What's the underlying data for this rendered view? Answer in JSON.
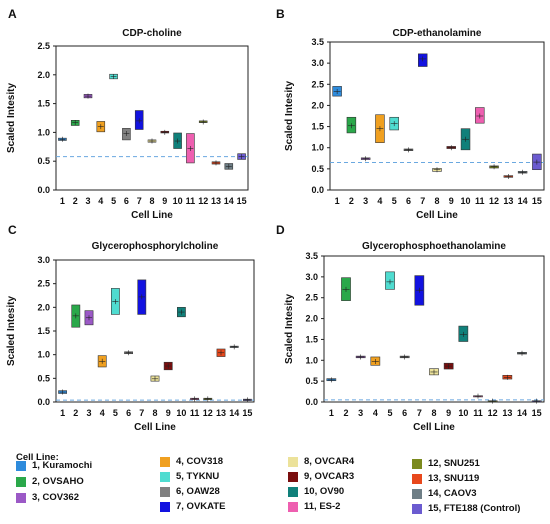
{
  "legend": {
    "title": "Cell Line:",
    "items": [
      {
        "label": "1, Kuramochi",
        "color": "#2e8bdc"
      },
      {
        "label": "2, OVSAHO",
        "color": "#2aa84a"
      },
      {
        "label": "3, COV362",
        "color": "#9b59c6"
      },
      {
        "label": "4, COV318",
        "color": "#f0a020"
      },
      {
        "label": "5, TYKNU",
        "color": "#4fdcd0"
      },
      {
        "label": "6, OAW28",
        "color": "#808080"
      },
      {
        "label": "7, OVKATE",
        "color": "#1212e0"
      },
      {
        "label": "8,   OVCAR4",
        "color": "#ece29a"
      },
      {
        "label": "9,   OVCAR3",
        "color": "#7a0e0e"
      },
      {
        "label": "10, OV90",
        "color": "#10807a"
      },
      {
        "label": "11, ES-2",
        "color": "#ee5fb0"
      },
      {
        "label": "12, SNU251",
        "color": "#7b8a1e"
      },
      {
        "label": "13, SNU119",
        "color": "#e8481c"
      },
      {
        "label": "14, CAOV3",
        "color": "#6e7e86"
      },
      {
        "label": "15, FTE188 (Control)",
        "color": "#6b5bd0"
      }
    ]
  },
  "chart_data": [
    {
      "type": "box",
      "panel": "A",
      "title": "CDP-choline",
      "xlabel": "Cell Line",
      "ylabel": "Scaled Intesity",
      "categories": [
        "1",
        "2",
        "3",
        "4",
        "5",
        "6",
        "7",
        "8",
        "9",
        "10",
        "11",
        "12",
        "13",
        "14",
        "15"
      ],
      "ylim": [
        0,
        2.5
      ],
      "yticks": [
        "0.0",
        "0.5",
        "1.0",
        "1.5",
        "2.0",
        "2.5"
      ],
      "reference_line": 0.58,
      "boxes": [
        {
          "low": 0.86,
          "high": 0.9,
          "mid": 0.88
        },
        {
          "low": 1.12,
          "high": 1.21,
          "mid": 1.17
        },
        {
          "low": 1.6,
          "high": 1.66,
          "mid": 1.63
        },
        {
          "low": 1.01,
          "high": 1.19,
          "mid": 1.1
        },
        {
          "low": 1.93,
          "high": 2.01,
          "mid": 1.97
        },
        {
          "low": 0.87,
          "high": 1.07,
          "mid": 0.98
        },
        {
          "low": 1.05,
          "high": 1.38,
          "mid": 1.2
        },
        {
          "low": 0.83,
          "high": 0.87,
          "mid": 0.85
        },
        {
          "low": 0.99,
          "high": 1.02,
          "mid": 1.0
        },
        {
          "low": 0.72,
          "high": 0.99,
          "mid": 0.85
        },
        {
          "low": 0.47,
          "high": 0.98,
          "mid": 0.72
        },
        {
          "low": 1.17,
          "high": 1.2,
          "mid": 1.18
        },
        {
          "low": 0.45,
          "high": 0.49,
          "mid": 0.47
        },
        {
          "low": 0.36,
          "high": 0.46,
          "mid": 0.41
        },
        {
          "low": 0.53,
          "high": 0.63,
          "mid": 0.58
        }
      ]
    },
    {
      "type": "box",
      "panel": "B",
      "title": "CDP-ethanolamine",
      "xlabel": "Cell Line",
      "ylabel": "Scaled Intesity",
      "categories": [
        "1",
        "2",
        "3",
        "4",
        "5",
        "6",
        "7",
        "8",
        "9",
        "10",
        "11",
        "12",
        "13",
        "14",
        "15"
      ],
      "ylim": [
        0,
        3.5
      ],
      "yticks": [
        "0.0",
        "0.5",
        "1.0",
        "1.5",
        "2.0",
        "2.5",
        "3.0",
        "3.5"
      ],
      "reference_line": 0.65,
      "boxes": [
        {
          "low": 2.22,
          "high": 2.45,
          "mid": 2.33
        },
        {
          "low": 1.35,
          "high": 1.72,
          "mid": 1.52
        },
        {
          "low": 0.72,
          "high": 0.76,
          "mid": 0.74
        },
        {
          "low": 1.12,
          "high": 1.78,
          "mid": 1.45
        },
        {
          "low": 1.42,
          "high": 1.72,
          "mid": 1.57
        },
        {
          "low": 0.93,
          "high": 0.97,
          "mid": 0.95
        },
        {
          "low": 2.92,
          "high": 3.22,
          "mid": 3.1
        },
        {
          "low": 0.44,
          "high": 0.51,
          "mid": 0.48
        },
        {
          "low": 0.98,
          "high": 1.03,
          "mid": 1.0
        },
        {
          "low": 0.95,
          "high": 1.45,
          "mid": 1.2
        },
        {
          "low": 1.58,
          "high": 1.95,
          "mid": 1.75
        },
        {
          "low": 0.52,
          "high": 0.57,
          "mid": 0.55
        },
        {
          "low": 0.3,
          "high": 0.34,
          "mid": 0.32
        },
        {
          "low": 0.4,
          "high": 0.44,
          "mid": 0.42
        },
        {
          "low": 0.48,
          "high": 0.85,
          "mid": 0.66
        }
      ]
    },
    {
      "type": "box",
      "panel": "C",
      "title": "Glycerophosphorylcholine",
      "xlabel": "Cell Line",
      "ylabel": "Scaled Intesity",
      "categories": [
        "1",
        "2",
        "3",
        "4",
        "5",
        "6",
        "7",
        "8",
        "9",
        "10",
        "11",
        "12",
        "13",
        "14",
        "15"
      ],
      "ylim": [
        0,
        3.0
      ],
      "yticks": [
        "0.0",
        "0.5",
        "1.0",
        "1.5",
        "2.0",
        "2.5",
        "3.0"
      ],
      "reference_line": 0.04,
      "boxes": [
        {
          "low": 0.18,
          "high": 0.24,
          "mid": 0.21
        },
        {
          "low": 1.58,
          "high": 2.05,
          "mid": 1.82
        },
        {
          "low": 1.63,
          "high": 1.93,
          "mid": 1.78
        },
        {
          "low": 0.74,
          "high": 0.98,
          "mid": 0.86
        },
        {
          "low": 1.85,
          "high": 2.4,
          "mid": 2.12
        },
        {
          "low": 1.02,
          "high": 1.06,
          "mid": 1.04
        },
        {
          "low": 1.85,
          "high": 2.58,
          "mid": 2.22
        },
        {
          "low": 0.44,
          "high": 0.55,
          "mid": 0.49
        },
        {
          "low": 0.68,
          "high": 0.84,
          "mid": 0.76
        },
        {
          "low": 1.8,
          "high": 2.0,
          "mid": 1.9
        },
        {
          "low": 0.05,
          "high": 0.08,
          "mid": 0.065
        },
        {
          "low": 0.05,
          "high": 0.08,
          "mid": 0.065
        },
        {
          "low": 0.96,
          "high": 1.12,
          "mid": 1.04
        },
        {
          "low": 1.15,
          "high": 1.18,
          "mid": 1.165
        },
        {
          "low": 0.03,
          "high": 0.06,
          "mid": 0.045
        }
      ]
    },
    {
      "type": "box",
      "panel": "D",
      "title": "Glycerophosphoethanolamine",
      "xlabel": "Cell Line",
      "ylabel": "Scaled Intesity",
      "categories": [
        "1",
        "2",
        "3",
        "4",
        "5",
        "6",
        "7",
        "8",
        "9",
        "10",
        "11",
        "12",
        "13",
        "14",
        "15"
      ],
      "ylim": [
        0,
        3.5
      ],
      "yticks": [
        "0.0",
        "0.5",
        "1.0",
        "1.5",
        "2.0",
        "2.5",
        "3.0",
        "3.5"
      ],
      "reference_line": 0.05,
      "boxes": [
        {
          "low": 0.51,
          "high": 0.56,
          "mid": 0.53
        },
        {
          "low": 2.43,
          "high": 2.98,
          "mid": 2.7
        },
        {
          "low": 1.06,
          "high": 1.1,
          "mid": 1.08
        },
        {
          "low": 0.88,
          "high": 1.08,
          "mid": 0.97
        },
        {
          "low": 2.7,
          "high": 3.12,
          "mid": 2.88
        },
        {
          "low": 1.06,
          "high": 1.1,
          "mid": 1.08
        },
        {
          "low": 2.32,
          "high": 3.03,
          "mid": 2.68
        },
        {
          "low": 0.65,
          "high": 0.8,
          "mid": 0.72
        },
        {
          "low": 0.79,
          "high": 0.93,
          "mid": 0.86
        },
        {
          "low": 1.45,
          "high": 1.82,
          "mid": 1.62
        },
        {
          "low": 0.13,
          "high": 0.15,
          "mid": 0.14
        },
        {
          "low": 0.01,
          "high": 0.03,
          "mid": 0.02
        },
        {
          "low": 0.55,
          "high": 0.64,
          "mid": 0.59
        },
        {
          "low": 1.15,
          "high": 1.19,
          "mid": 1.17
        },
        {
          "low": 0.01,
          "high": 0.03,
          "mid": 0.02
        }
      ]
    }
  ]
}
